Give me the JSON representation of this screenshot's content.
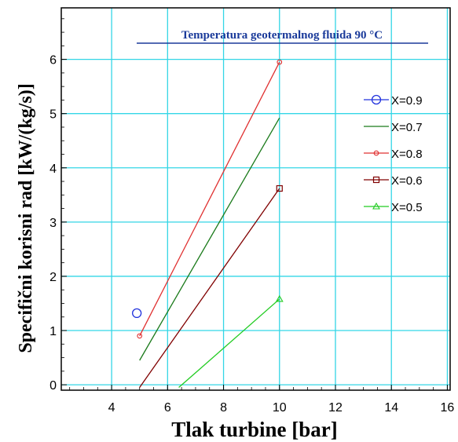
{
  "chart_data": {
    "type": "line",
    "title": "",
    "annotation": "Temperatura geotermalnog fluida   90 °C",
    "xlabel": "Tlak turbine [bar]",
    "ylabel": "Specifični korisni rad [kW/(kg/s)]",
    "xlim": [
      2.2,
      16.1
    ],
    "ylim": [
      -0.1,
      6.95
    ],
    "xticks": [
      4,
      6,
      8,
      10,
      12,
      14,
      16
    ],
    "yticks": [
      0,
      1,
      2,
      3,
      4,
      5,
      6
    ],
    "grid": true,
    "legend_position": "right",
    "series": [
      {
        "name": "X=0.9",
        "color": "#2233dd",
        "marker": "circle-large",
        "points": [
          [
            4.9,
            1.32
          ]
        ]
      },
      {
        "name": "X=0.7",
        "color": "#1a7a1a",
        "marker": "none",
        "points": [
          [
            5.0,
            0.45
          ],
          [
            10.0,
            4.92
          ]
        ]
      },
      {
        "name": "X=0.8",
        "color": "#e03030",
        "marker": "circle-small",
        "points": [
          [
            5.0,
            0.9
          ],
          [
            10.0,
            5.95
          ]
        ]
      },
      {
        "name": "X=0.6",
        "color": "#800000",
        "marker": "square",
        "points": [
          [
            5.0,
            -0.05
          ],
          [
            10.0,
            3.62
          ]
        ]
      },
      {
        "name": "X=0.5",
        "color": "#22cc22",
        "marker": "triangle",
        "points": [
          [
            6.4,
            -0.05
          ],
          [
            10.0,
            1.58
          ]
        ]
      }
    ]
  }
}
